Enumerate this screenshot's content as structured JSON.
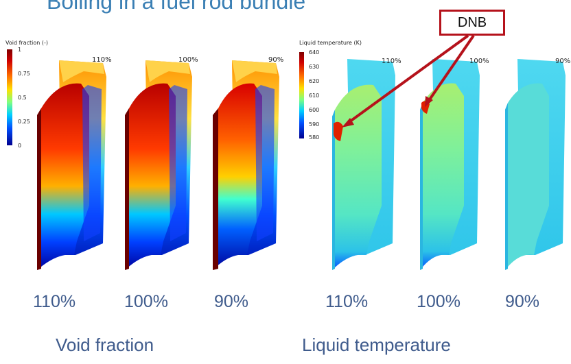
{
  "title": "Boiling in a fuel rod bundle",
  "void_panel": {
    "colorbar_title": "Void fraction (-)",
    "ticks": [
      "1",
      "0.75",
      "0.5",
      "0.25",
      "0"
    ],
    "cases": [
      "110%",
      "100%",
      "90%"
    ],
    "colors": [
      "#00008f",
      "#0050ff",
      "#00d0ff",
      "#7fff7f",
      "#ffe000",
      "#ff7000",
      "#d00000",
      "#7f0000"
    ]
  },
  "temp_panel": {
    "colorbar_title": "Liquid temperature (K)",
    "ticks": [
      "640",
      "630",
      "620",
      "610",
      "600",
      "590",
      "580"
    ],
    "cases": [
      "110%",
      "100%",
      "90%"
    ]
  },
  "annotation": {
    "label": "DNB",
    "color": "#b5121b"
  },
  "bottom_labels": {
    "cases": [
      "110%",
      "100%",
      "90%",
      "110%",
      "100%",
      "90%"
    ],
    "void_caption": "Void fraction",
    "temp_caption": "Liquid temperature"
  }
}
